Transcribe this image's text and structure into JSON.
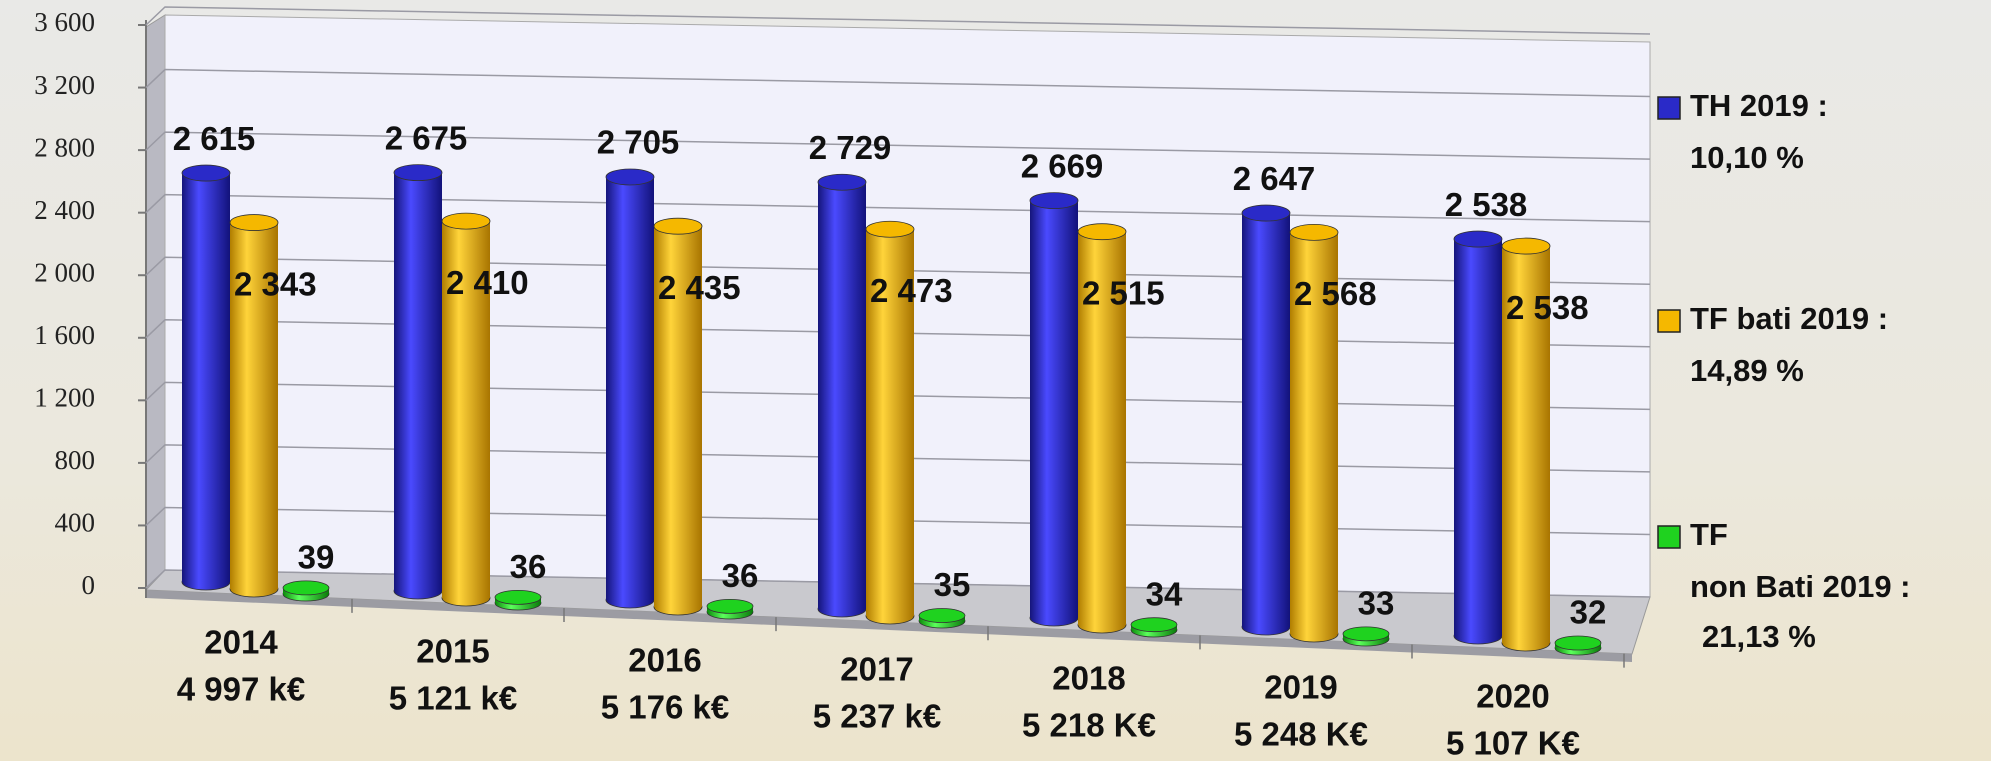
{
  "chart_data": {
    "type": "bar",
    "categories": [
      "2014",
      "2015",
      "2016",
      "2017",
      "2018",
      "2019",
      "2020"
    ],
    "category_totals": [
      "4 997 k€",
      "5 121 k€",
      "5 176 k€",
      "5 237 k€",
      "5 218 K€",
      "5 248 K€",
      "5 107 K€"
    ],
    "series": [
      {
        "name": [
          "TH 2019 :"
        ],
        "rate": "10,10 %",
        "color": "#2a2ac8",
        "values": [
          2615,
          2675,
          2705,
          2729,
          2669,
          2647,
          2538
        ],
        "value_labels": [
          "2 615",
          "2 675",
          "2 705",
          "2 729",
          "2 669",
          "2 647",
          "2 538"
        ]
      },
      {
        "name": [
          "TF bati 2019 :"
        ],
        "rate": "14,89 %",
        "color": "#f5b800",
        "values": [
          2343,
          2410,
          2435,
          2473,
          2515,
          2568,
          2538
        ],
        "value_labels": [
          "2 343",
          "2 410",
          "2 435",
          "2 473",
          "2 515",
          "2 568",
          "2 538"
        ]
      },
      {
        "name": [
          "TF",
          "non Bati 2019 :"
        ],
        "rate": "21,13 %",
        "color": "#1fd21f",
        "values": [
          39,
          36,
          36,
          35,
          34,
          33,
          32
        ]
      }
    ],
    "ylim": [
      0,
      3600
    ],
    "yticks": [
      0,
      400,
      800,
      {
        "value": 1200,
        "label": "1 200"
      },
      {
        "value": 1600,
        "label": "1 600"
      },
      {
        "value": 2000,
        "label": "2 000"
      },
      {
        "value": 2400,
        "label": "2 400"
      },
      {
        "value": 2800,
        "label": "2 800"
      },
      {
        "value": 3200,
        "label": "3 200"
      },
      {
        "value": 3600,
        "label": "3 600"
      }
    ],
    "grid": true
  }
}
